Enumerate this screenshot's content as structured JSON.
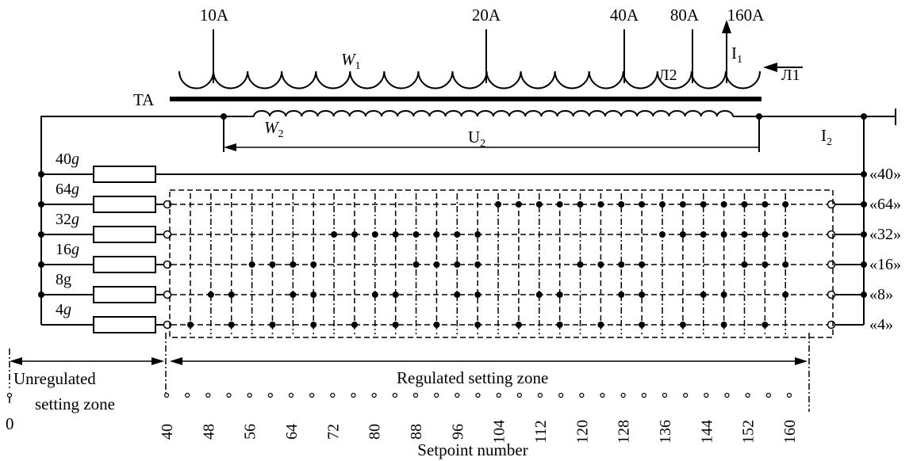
{
  "primary": {
    "tap_labels": [
      "10A",
      "20A",
      "40A",
      "80A",
      "160A"
    ],
    "winding_label": "W",
    "winding_sub": "1",
    "lead_left": "Л2",
    "lead_right": "Л1",
    "current_label": "I",
    "current_sub": "1"
  },
  "core_label": "TA",
  "secondary": {
    "winding_label": "W",
    "winding_sub": "2",
    "voltage_label": "U",
    "voltage_sub": "2",
    "current_label": "I",
    "current_sub": "2"
  },
  "resistors": [
    {
      "num": "40",
      "unit": "g",
      "italic": true
    },
    {
      "num": "64",
      "unit": "g",
      "italic": true
    },
    {
      "num": "32",
      "unit": "g",
      "italic": true
    },
    {
      "num": "16",
      "unit": "g",
      "italic": true
    },
    {
      "num": "8",
      "unit": "g",
      "italic": false
    },
    {
      "num": "4",
      "unit": "g",
      "italic": true
    }
  ],
  "right_labels": [
    "«40»",
    "«64»",
    "«32»",
    "«16»",
    "«8»",
    "«4»"
  ],
  "zones": {
    "unregulated_line1": "Unregulated",
    "unregulated_line2": "setting zone",
    "regulated": "Regulated  setting zone",
    "zero_label": "0"
  },
  "setpoints": {
    "values": [
      40,
      44,
      48,
      52,
      56,
      60,
      64,
      68,
      72,
      76,
      80,
      84,
      88,
      92,
      96,
      100,
      104,
      108,
      112,
      116,
      120,
      124,
      128,
      132,
      136,
      140,
      144,
      148,
      152,
      156,
      160
    ],
    "tick_labels": [
      "40",
      "48",
      "56",
      "64",
      "72",
      "80",
      "88",
      "96",
      "104",
      "112",
      "120",
      "128",
      "136",
      "144",
      "152",
      "160"
    ],
    "axis_title": "Setpoint number"
  }
}
